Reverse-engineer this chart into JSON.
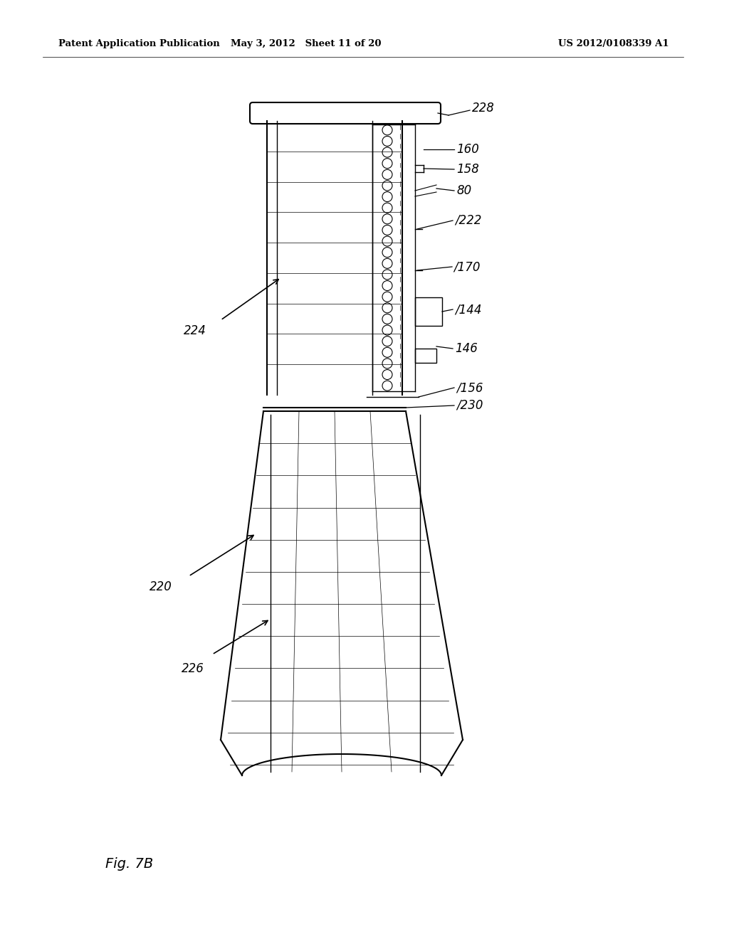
{
  "bg_color": "#ffffff",
  "header_left": "Patent Application Publication",
  "header_mid": "May 3, 2012   Sheet 11 of 20",
  "header_right": "US 2012/0108339 A1",
  "figure_label": "Fig. 7B"
}
